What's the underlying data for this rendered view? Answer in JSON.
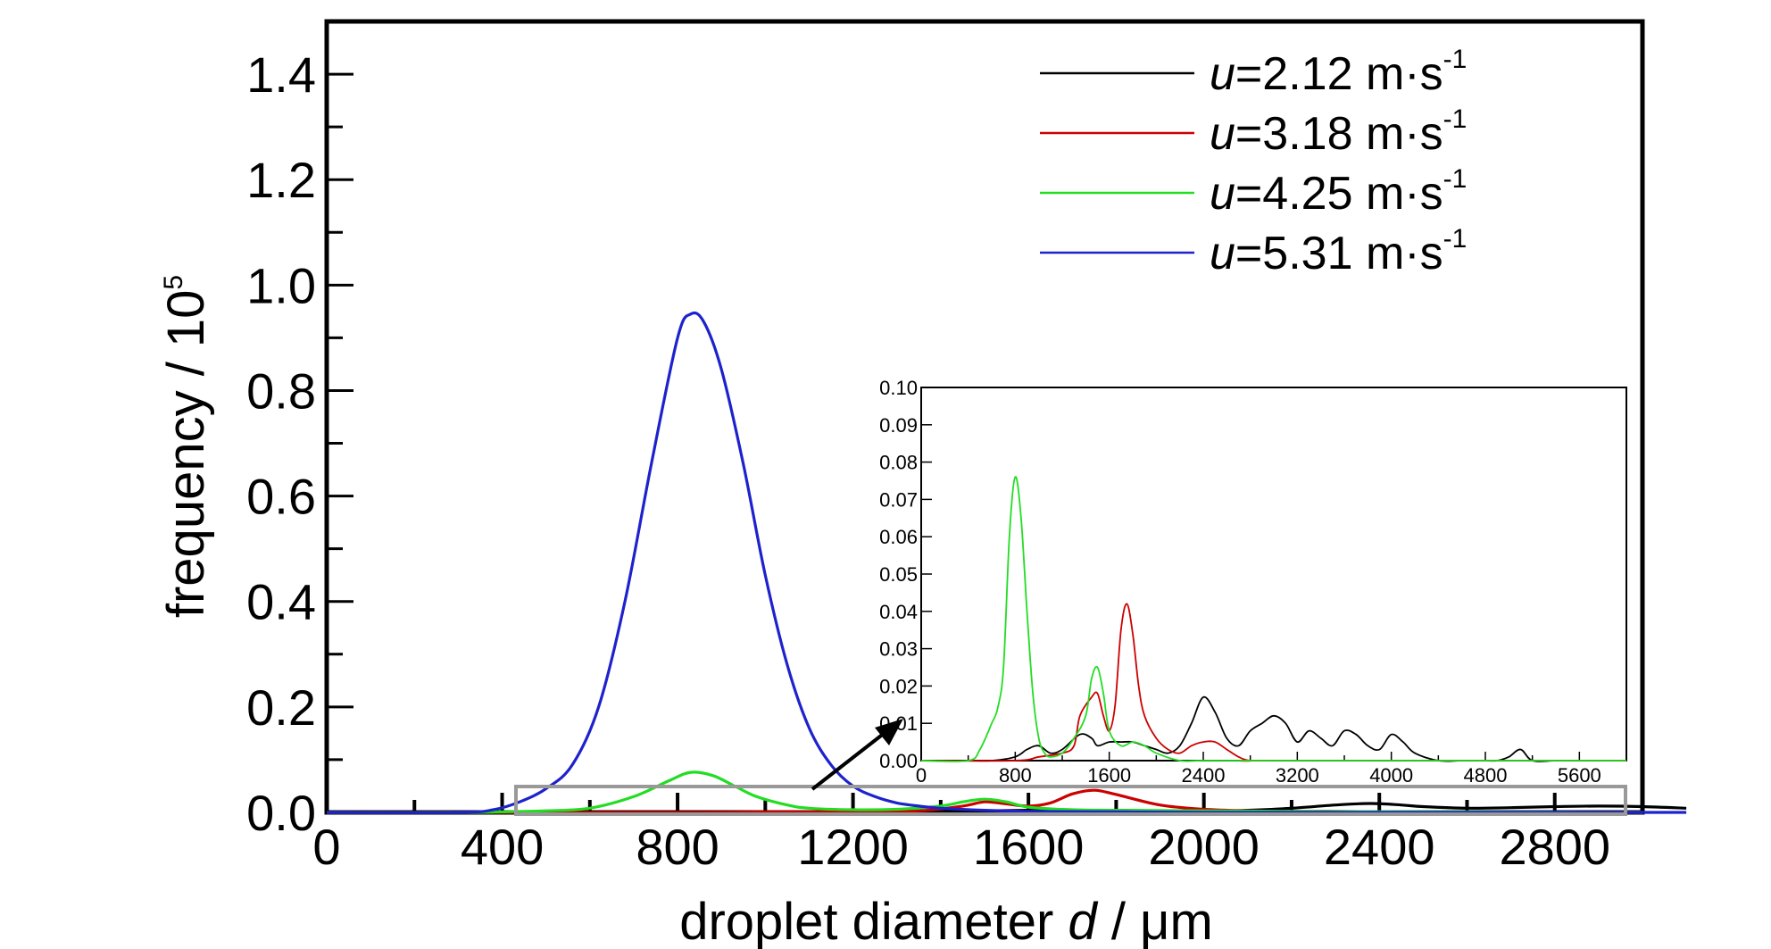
{
  "chart_data": [
    {
      "type": "line",
      "xlabel": {
        "pre": "droplet diameter ",
        "italic": "d",
        "post": " / μm"
      },
      "ylabel": {
        "base": "frequency / 10",
        "sup": "5"
      },
      "xlim": [
        0,
        3000
      ],
      "ylim": [
        0,
        1.5
      ],
      "xticks": [
        "0",
        "400",
        "800",
        "1200",
        "1600",
        "2000",
        "2400",
        "2800"
      ],
      "yticks": [
        "0.0",
        "0.2",
        "0.4",
        "0.6",
        "0.8",
        "1.0",
        "1.2",
        "1.4"
      ],
      "legend_position": "top-right",
      "series": [
        {
          "name": {
            "italic": "u",
            "text": "=2.12 m·s",
            "sup": "-1"
          },
          "color": "#000000",
          "x": [
            0,
            800,
            1000,
            1200,
            1300,
            1400,
            1500,
            1600,
            1700,
            1800,
            1900,
            2000,
            2100,
            2200,
            2300,
            2380,
            2450,
            2500,
            2600,
            2700,
            2800,
            2900,
            3000,
            3100
          ],
          "y": [
            0.0,
            0.0,
            0.001,
            0.001,
            0.002,
            0.003,
            0.003,
            0.004,
            0.004,
            0.004,
            0.003,
            0.002,
            0.004,
            0.008,
            0.014,
            0.017,
            0.014,
            0.011,
            0.008,
            0.009,
            0.011,
            0.012,
            0.011,
            0.008
          ]
        },
        {
          "name": {
            "italic": "u",
            "text": "=3.18 m·s",
            "sup": "-1"
          },
          "color": "#cc0000",
          "x": [
            0,
            800,
            1000,
            1200,
            1350,
            1450,
            1500,
            1550,
            1600,
            1650,
            1700,
            1750,
            1800,
            1900,
            2000,
            2100,
            2200,
            2300,
            2400,
            2600,
            2800,
            3000
          ],
          "y": [
            0.0,
            0.0,
            0.001,
            0.001,
            0.003,
            0.012,
            0.02,
            0.016,
            0.012,
            0.018,
            0.035,
            0.042,
            0.034,
            0.014,
            0.006,
            0.003,
            0.002,
            0.002,
            0.001,
            0.0,
            0.0,
            0.0
          ]
        },
        {
          "name": {
            "italic": "u",
            "text": "=4.25 m·s",
            "sup": "-1"
          },
          "color": "#22dd22",
          "x": [
            0,
            300,
            400,
            500,
            600,
            700,
            780,
            830,
            880,
            930,
            980,
            1050,
            1100,
            1200,
            1300,
            1400,
            1450,
            1500,
            1550,
            1600,
            1700,
            1800,
            2000,
            2200,
            2600,
            3000
          ],
          "y": [
            0.0,
            0.0,
            0.001,
            0.003,
            0.008,
            0.03,
            0.06,
            0.076,
            0.07,
            0.05,
            0.03,
            0.014,
            0.008,
            0.005,
            0.006,
            0.012,
            0.02,
            0.025,
            0.02,
            0.01,
            0.005,
            0.004,
            0.003,
            0.002,
            0.001,
            0.0
          ]
        },
        {
          "name": {
            "italic": "u",
            "text": "=5.31 m·s",
            "sup": "-1"
          },
          "color": "#1e22cc",
          "x": [
            0,
            300,
            380,
            440,
            500,
            560,
            620,
            680,
            740,
            800,
            830,
            860,
            900,
            950,
            1000,
            1050,
            1100,
            1150,
            1200,
            1250,
            1300,
            1350,
            1400,
            1500,
            1600,
            1800,
            2000,
            2400,
            2800,
            3000,
            3100
          ],
          "y": [
            0.0,
            0.0,
            0.005,
            0.02,
            0.045,
            0.09,
            0.2,
            0.4,
            0.66,
            0.9,
            0.945,
            0.93,
            0.84,
            0.66,
            0.45,
            0.28,
            0.16,
            0.09,
            0.05,
            0.03,
            0.018,
            0.012,
            0.008,
            0.004,
            0.002,
            0.001,
            0.0,
            0.0,
            0.0,
            0.0,
            0.0
          ]
        }
      ]
    },
    {
      "type": "line",
      "xlim": [
        0,
        6000
      ],
      "ylim": [
        0,
        0.1
      ],
      "xticks": [
        "0",
        "800",
        "1600",
        "2400",
        "3200",
        "4000",
        "4800",
        "5600"
      ],
      "yticks": [
        "0.00",
        "0.01",
        "0.02",
        "0.03",
        "0.04",
        "0.05",
        "0.06",
        "0.07",
        "0.08",
        "0.09",
        "0.10"
      ],
      "series": [
        {
          "color": "#000000",
          "x": [
            0,
            400,
            600,
            800,
            900,
            1000,
            1100,
            1200,
            1350,
            1450,
            1500,
            1600,
            1700,
            1800,
            1900,
            2000,
            2100,
            2200,
            2300,
            2400,
            2500,
            2600,
            2700,
            2800,
            2900,
            3000,
            3100,
            3200,
            3300,
            3400,
            3500,
            3600,
            3700,
            3800,
            3900,
            4000,
            4100,
            4200,
            4400,
            4600,
            4800,
            4900,
            5000,
            5100,
            5200,
            5400,
            5600,
            6000
          ],
          "y": [
            0.0,
            0.0,
            0.0,
            0.001,
            0.003,
            0.004,
            0.002,
            0.003,
            0.007,
            0.006,
            0.004,
            0.005,
            0.005,
            0.005,
            0.004,
            0.003,
            0.002,
            0.004,
            0.01,
            0.017,
            0.013,
            0.006,
            0.004,
            0.008,
            0.01,
            0.012,
            0.01,
            0.005,
            0.008,
            0.006,
            0.004,
            0.008,
            0.007,
            0.004,
            0.003,
            0.007,
            0.005,
            0.002,
            0.0,
            0.0,
            0.0,
            0.0,
            0.001,
            0.003,
            0.0,
            0.0,
            0.0,
            0.0
          ]
        },
        {
          "color": "#cc0000",
          "x": [
            0,
            800,
            1000,
            1200,
            1300,
            1350,
            1450,
            1500,
            1550,
            1600,
            1650,
            1700,
            1750,
            1800,
            1850,
            1900,
            2000,
            2100,
            2200,
            2300,
            2400,
            2500,
            2600,
            2700,
            2800,
            3000,
            6000
          ],
          "y": [
            0.0,
            0.0,
            0.001,
            0.002,
            0.004,
            0.012,
            0.017,
            0.018,
            0.012,
            0.008,
            0.015,
            0.035,
            0.042,
            0.034,
            0.02,
            0.012,
            0.006,
            0.003,
            0.002,
            0.004,
            0.005,
            0.005,
            0.003,
            0.001,
            0.0,
            0.0,
            0.0
          ]
        },
        {
          "color": "#22dd22",
          "x": [
            0,
            400,
            500,
            600,
            650,
            700,
            750,
            800,
            850,
            900,
            950,
            1000,
            1050,
            1100,
            1200,
            1300,
            1400,
            1450,
            1500,
            1550,
            1600,
            1700,
            1800,
            1900,
            2000,
            2200,
            2400,
            3000,
            6000
          ],
          "y": [
            0.0,
            0.0,
            0.003,
            0.01,
            0.014,
            0.025,
            0.06,
            0.076,
            0.065,
            0.04,
            0.018,
            0.006,
            0.002,
            0.001,
            0.002,
            0.006,
            0.012,
            0.022,
            0.025,
            0.018,
            0.008,
            0.004,
            0.005,
            0.004,
            0.002,
            0.0,
            0.0,
            0.0,
            0.0
          ]
        }
      ]
    }
  ]
}
